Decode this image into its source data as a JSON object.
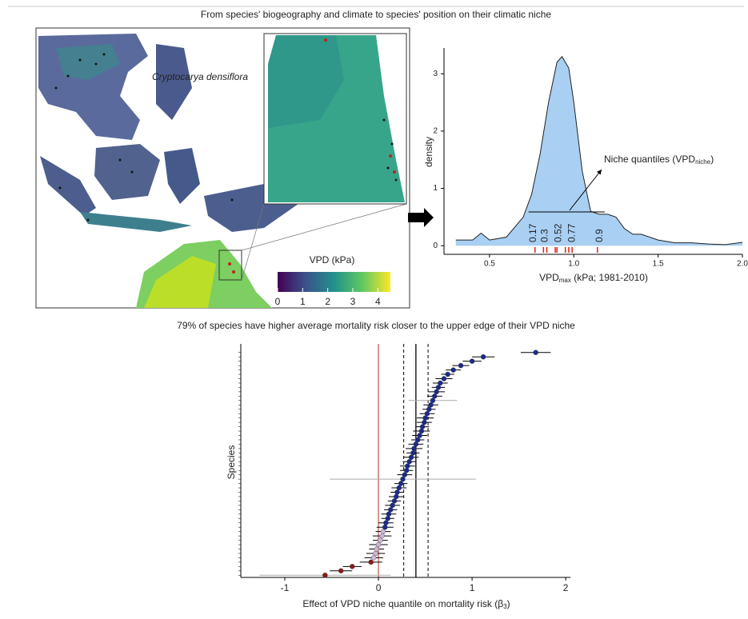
{
  "title": "From species' biogeography and climate to species' position on their climatic niche",
  "map": {
    "species": "Cryptocarya densiflora",
    "colorbar_label": "VPD (kPa)",
    "colorbar_ticks": [
      0,
      1,
      2,
      3,
      4
    ],
    "colorbar_lim": [
      0,
      4.5
    ]
  },
  "chart_data": [
    {
      "type": "density",
      "y_label": "density",
      "x_label": "VPD",
      "x_label_sub": "max",
      "x_label_rest": " (kPa; 1981-2010)",
      "x": [
        0.3,
        0.4,
        0.45,
        0.5,
        0.6,
        0.7,
        0.75,
        0.8,
        0.85,
        0.9,
        0.93,
        0.97,
        1.0,
        1.05,
        1.1,
        1.15,
        1.2,
        1.25,
        1.3,
        1.35,
        1.4,
        1.5,
        1.6,
        1.7,
        1.8,
        1.9,
        2.0
      ],
      "values": [
        0.1,
        0.1,
        0.22,
        0.1,
        0.15,
        0.5,
        0.9,
        1.6,
        2.5,
        3.2,
        3.3,
        3.1,
        2.5,
        1.3,
        0.6,
        0.55,
        0.55,
        0.5,
        0.3,
        0.2,
        0.2,
        0.1,
        0.05,
        0.05,
        0.03,
        0.02,
        0.06
      ],
      "color": "#a9cff3",
      "xlim": [
        0.23,
        2.0
      ],
      "ylim": [
        -0.15,
        3.45
      ],
      "xticks": [
        0.5,
        {
          "value": 1,
          "label": "1.0"
        },
        1.5,
        {
          "value": 2,
          "label": "2.0"
        }
      ],
      "yticks": [
        0,
        1,
        2,
        3
      ],
      "rug": [
        0.77,
        0.82,
        0.84,
        0.89,
        0.9,
        0.95,
        0.97,
        0.99,
        1.14
      ],
      "rug_color": "#e0201b",
      "quantiles": [
        {
          "q": 0.17,
          "vpd": 0.76
        },
        {
          "q": 0.3,
          "vpd": 0.83
        },
        {
          "q": 0.52,
          "vpd": 0.91
        },
        {
          "q": 0.77,
          "vpd": 0.99
        },
        {
          "q": 0.9,
          "vpd": 1.155
        }
      ],
      "annotation": "Niche quantiles (VPD",
      "annotation_sub": "niche",
      "annotation_end": ")"
    },
    {
      "type": "forest",
      "title": "79% of species have higher average mortality risk closer to the upper edge of their VPD niche",
      "y_label": "Species",
      "x_label": "Effect of VPD niche quantile on mortality risk (β",
      "x_label_sub": "3",
      "x_label_end": ")",
      "values": [
        -0.57,
        -0.4,
        -0.28,
        -0.08,
        -0.05,
        -0.03,
        -0.02,
        0.0,
        0.02,
        0.04,
        0.05,
        0.07,
        0.08,
        0.1,
        0.11,
        0.13,
        0.15,
        0.17,
        0.19,
        0.2,
        0.22,
        0.24,
        0.26,
        0.28,
        0.3,
        0.31,
        0.33,
        0.35,
        0.37,
        0.38,
        0.4,
        0.42,
        0.44,
        0.46,
        0.47,
        0.49,
        0.5,
        0.52,
        0.54,
        0.56,
        0.58,
        0.6,
        0.62,
        0.64,
        0.66,
        0.7,
        0.74,
        0.8,
        0.88,
        1.0,
        1.12,
        1.68
      ],
      "errors": [
        0.7,
        0.12,
        0.1,
        0.12,
        0.1,
        0.1,
        0.08,
        0.1,
        0.08,
        0.1,
        0.08,
        0.09,
        0.08,
        0.07,
        0.08,
        0.07,
        0.08,
        0.07,
        0.08,
        0.07,
        0.08,
        0.07,
        0.78,
        0.08,
        0.07,
        0.08,
        0.07,
        0.08,
        0.07,
        0.09,
        0.08,
        0.07,
        0.08,
        0.09,
        0.07,
        0.08,
        0.09,
        0.08,
        0.07,
        0.08,
        0.26,
        0.08,
        0.09,
        0.07,
        0.08,
        0.09,
        0.07,
        0.08,
        0.09,
        0.1,
        0.12,
        0.16
      ],
      "colors": [
        "#8b1a1a",
        "#8b1a1a",
        "#8b1a1a",
        "#8b1a1a",
        "#cdb6d6",
        "#cdb6d6",
        "#cdb6d6",
        "#cdb6d6",
        "#cdb6d6",
        "#cdb6d6",
        "#cdb6d6",
        "#1b2a8a",
        "#1b2a8a",
        "#1b2a8a",
        "#1b2a8a",
        "#1b2a8a",
        "#1b2a8a",
        "#1b2a8a",
        "#1b2a8a",
        "#1b2a8a",
        "#1b2a8a",
        "#1b2a8a",
        "#1b2a8a",
        "#1b2a8a",
        "#1b2a8a",
        "#1b2a8a",
        "#1b2a8a",
        "#1b2a8a",
        "#1b2a8a",
        "#1b2a8a",
        "#1b2a8a",
        "#1b2a8a",
        "#1b2a8a",
        "#1b2a8a",
        "#1b2a8a",
        "#1b2a8a",
        "#1b2a8a",
        "#1b2a8a",
        "#1b2a8a",
        "#1b2a8a",
        "#1b2a8a",
        "#1b2a8a",
        "#1b2a8a",
        "#1b2a8a",
        "#1b2a8a",
        "#1b2a8a",
        "#1b2a8a",
        "#1b2a8a",
        "#1b2a8a",
        "#1b2a8a",
        "#1b2a8a",
        "#1b2a8a"
      ],
      "mean": 0.4,
      "ci": [
        0.27,
        0.53
      ],
      "xlim": [
        -1.47,
        2.05
      ],
      "xticks": [
        -1,
        0,
        1,
        2
      ]
    }
  ]
}
